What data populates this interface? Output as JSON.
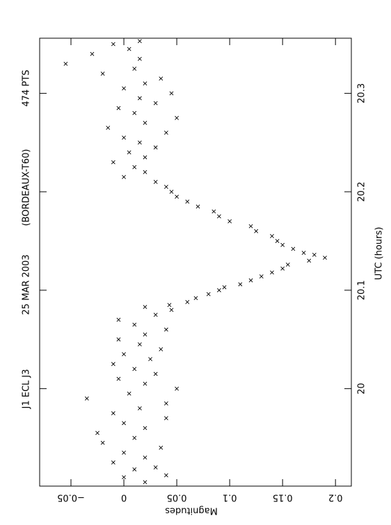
{
  "chart_data": {
    "type": "scatter",
    "title": [
      "J1 ECL J3",
      "25 MAR 2003",
      "(BORDEAUX-T60)",
      "474 PTS"
    ],
    "x_label": "UTC (hours)",
    "y_label": "Magnitudes",
    "marker": "x",
    "color": "#000000",
    "xlim": [
      19.901,
      20.356
    ],
    "xticks": [
      20,
      20.1,
      20.2,
      20.3
    ],
    "ylim": [
      -0.0796,
      0.215
    ],
    "yticks": [
      {
        "value": -0.05,
        "label": "−0.05"
      },
      0,
      0.05,
      0.1,
      0.15,
      0.2
    ],
    "x": [
      19.905,
      19.91,
      19.912,
      19.918,
      19.92,
      19.925,
      19.93,
      19.935,
      19.94,
      19.945,
      19.95,
      19.955,
      19.96,
      19.965,
      19.97,
      19.975,
      19.98,
      19.985,
      19.99,
      19.995,
      20.0,
      20.005,
      20.01,
      20.015,
      20.02,
      20.025,
      20.03,
      20.035,
      20.04,
      20.045,
      20.05,
      20.055,
      20.06,
      20.065,
      20.07,
      20.075,
      20.08,
      20.083,
      20.085,
      20.088,
      20.092,
      20.096,
      20.1,
      20.103,
      20.106,
      20.11,
      20.114,
      20.118,
      20.122,
      20.126,
      20.13,
      20.133,
      20.136,
      20.138,
      20.142,
      20.146,
      20.15,
      20.155,
      20.16,
      20.165,
      20.17,
      20.175,
      20.18,
      20.185,
      20.19,
      20.195,
      20.2,
      20.205,
      20.21,
      20.215,
      20.22,
      20.225,
      20.23,
      20.235,
      20.24,
      20.245,
      20.25,
      20.255,
      20.26,
      20.265,
      20.27,
      20.275,
      20.28,
      20.285,
      20.29,
      20.295,
      20.3,
      20.305,
      20.31,
      20.315,
      20.32,
      20.325,
      20.33,
      20.335,
      20.34,
      20.345,
      20.35,
      20.353
    ],
    "values": [
      0.02,
      0.0,
      0.04,
      0.01,
      0.03,
      -0.01,
      0.02,
      0.0,
      0.035,
      -0.02,
      0.01,
      -0.025,
      0.02,
      0.0,
      0.04,
      -0.01,
      0.015,
      0.04,
      -0.035,
      0.005,
      0.05,
      0.02,
      -0.005,
      0.03,
      0.01,
      -0.01,
      0.025,
      0.0,
      0.035,
      0.015,
      -0.005,
      0.02,
      0.04,
      0.01,
      -0.005,
      0.03,
      0.045,
      0.02,
      0.043,
      0.06,
      0.068,
      0.08,
      0.09,
      0.095,
      0.11,
      0.12,
      0.13,
      0.14,
      0.15,
      0.155,
      0.175,
      0.19,
      0.18,
      0.17,
      0.16,
      0.15,
      0.145,
      0.14,
      0.125,
      0.12,
      0.1,
      0.09,
      0.085,
      0.07,
      0.06,
      0.05,
      0.045,
      0.04,
      0.03,
      0.0,
      0.02,
      0.01,
      -0.01,
      0.02,
      0.005,
      0.03,
      0.015,
      0.0,
      0.04,
      -0.015,
      0.02,
      0.05,
      0.01,
      -0.005,
      0.03,
      0.015,
      0.045,
      0.0,
      0.02,
      0.035,
      -0.02,
      0.01,
      -0.055,
      0.015,
      -0.03,
      0.005,
      -0.01,
      0.015
    ]
  }
}
